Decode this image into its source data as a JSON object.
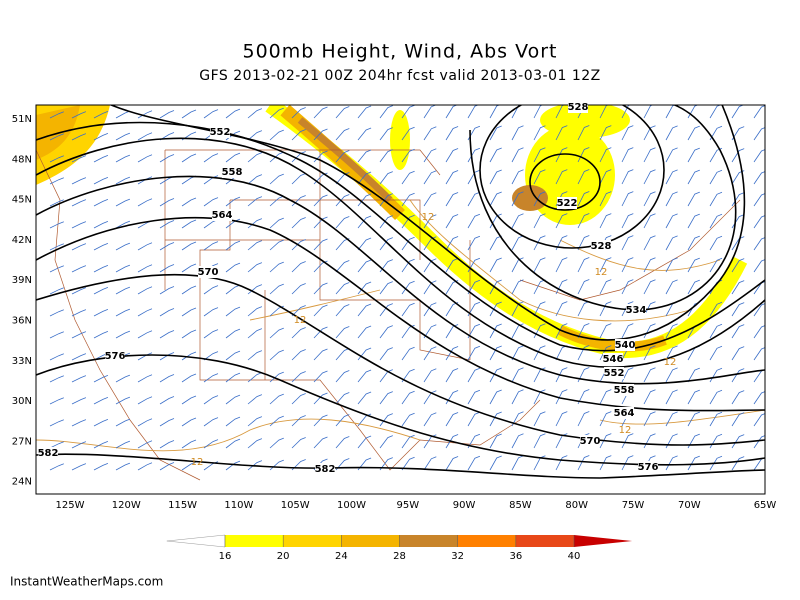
{
  "title": "500mb Height, Wind, Abs Vort",
  "subtitle": "GFS 2013-02-21 00Z 204hr fcst valid 2013-03-01 12Z",
  "latitude_labels": [
    "51N",
    "48N",
    "45N",
    "42N",
    "39N",
    "36N",
    "33N",
    "30N",
    "27N",
    "24N"
  ],
  "longitude_labels": [
    "125W",
    "120W",
    "115W",
    "110W",
    "105W",
    "100W",
    "95W",
    "90W",
    "85W",
    "80W",
    "75W",
    "70W",
    "65W"
  ],
  "height_contour_labels": [
    "552",
    "558",
    "564",
    "570",
    "576",
    "582",
    "582",
    "528",
    "522",
    "528",
    "534",
    "540",
    "546",
    "552",
    "558",
    "564",
    "570",
    "576"
  ],
  "vorticity_contour_labels": [
    "12",
    "12",
    "12",
    "12",
    "12",
    "12"
  ],
  "colorbar": {
    "ticks": [
      16,
      20,
      24,
      28,
      32,
      36,
      40
    ],
    "colors": [
      "#ffff00",
      "#ffd400",
      "#f4b400",
      "#c8842a",
      "#ff8000",
      "#e84818",
      "#c80000"
    ]
  },
  "credit": "InstantWeatherMaps.com"
}
